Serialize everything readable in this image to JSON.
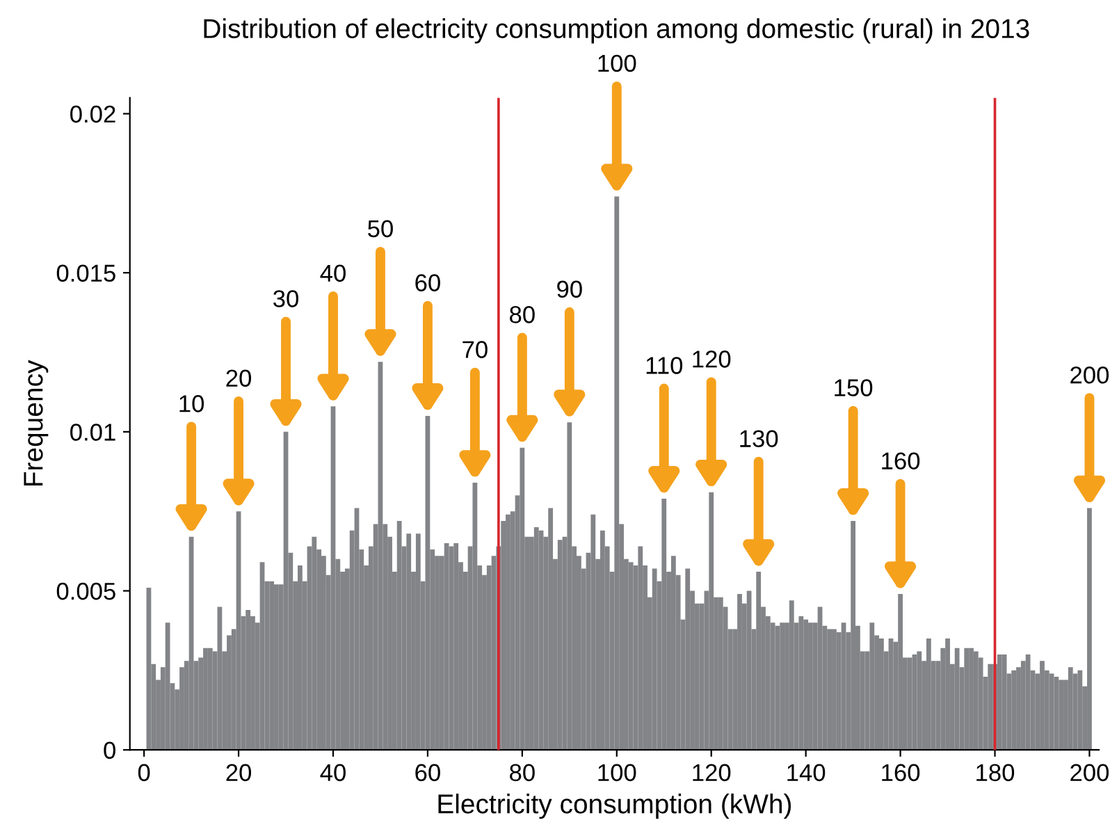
{
  "chart_data": {
    "type": "histogram",
    "title": "Distribution of electricity consumption among domestic (rural) in 2013",
    "xlabel": "Electricity consumption (kWh)",
    "ylabel": "Frequency",
    "color": "#838488",
    "bins": [
      0.5,
      1.5,
      2.5,
      3.5,
      4.5,
      5.5,
      6.5,
      7.5,
      8.5,
      9.5,
      10.5,
      11.5,
      12.5,
      13.5,
      14.5,
      15.5,
      16.5,
      17.5,
      18.5,
      19.5,
      20.5,
      21.5,
      22.5,
      23.5,
      24.5,
      25.5,
      26.5,
      27.5,
      28.5,
      29.5,
      30.5,
      31.5,
      32.5,
      33.5,
      34.5,
      35.5,
      36.5,
      37.5,
      38.5,
      39.5,
      40.5,
      41.5,
      42.5,
      43.5,
      44.5,
      45.5,
      46.5,
      47.5,
      48.5,
      49.5,
      50.5,
      51.5,
      52.5,
      53.5,
      54.5,
      55.5,
      56.5,
      57.5,
      58.5,
      59.5,
      60.5,
      61.5,
      62.5,
      63.5,
      64.5,
      65.5,
      66.5,
      67.5,
      68.5,
      69.5,
      70.5,
      71.5,
      72.5,
      73.5,
      74.5,
      75.5,
      76.5,
      77.5,
      78.5,
      79.5,
      80.5,
      81.5,
      82.5,
      83.5,
      84.5,
      85.5,
      86.5,
      87.5,
      88.5,
      89.5,
      90.5,
      91.5,
      92.5,
      93.5,
      94.5,
      95.5,
      96.5,
      97.5,
      98.5,
      99.5,
      100.5,
      101.5,
      102.5,
      103.5,
      104.5,
      105.5,
      106.5,
      107.5,
      108.5,
      109.5,
      110.5,
      111.5,
      112.5,
      113.5,
      114.5,
      115.5,
      116.5,
      117.5,
      118.5,
      119.5,
      120.5,
      121.5,
      122.5,
      123.5,
      124.5,
      125.5,
      126.5,
      127.5,
      128.5,
      129.5,
      130.5,
      131.5,
      132.5,
      133.5,
      134.5,
      135.5,
      136.5,
      137.5,
      138.5,
      139.5,
      140.5,
      141.5,
      142.5,
      143.5,
      144.5,
      145.5,
      146.5,
      147.5,
      148.5,
      149.5,
      150.5,
      151.5,
      152.5,
      153.5,
      154.5,
      155.5,
      156.5,
      157.5,
      158.5,
      159.5,
      160.5,
      161.5,
      162.5,
      163.5,
      164.5,
      165.5,
      166.5,
      167.5,
      168.5,
      169.5,
      170.5,
      171.5,
      172.5,
      173.5,
      174.5,
      175.5,
      176.5,
      177.5,
      178.5,
      179.5,
      180.5,
      181.5,
      182.5,
      183.5,
      184.5,
      185.5,
      186.5,
      187.5,
      188.5,
      189.5,
      190.5,
      191.5,
      192.5,
      193.5,
      194.5,
      195.5,
      196.5,
      197.5,
      198.5,
      199.5,
      200.5
    ],
    "values": [
      0.0051,
      0.0027,
      0.0022,
      0.0026,
      0.004,
      0.0021,
      0.0019,
      0.0026,
      0.0028,
      0.0067,
      0.0028,
      0.0029,
      0.0032,
      0.0032,
      0.0031,
      0.0045,
      0.0031,
      0.0036,
      0.0038,
      0.0075,
      0.0042,
      0.0044,
      0.0042,
      0.004,
      0.0059,
      0.0053,
      0.0053,
      0.0052,
      0.0052,
      0.01,
      0.0062,
      0.0053,
      0.0058,
      0.0053,
      0.0064,
      0.0067,
      0.0063,
      0.0061,
      0.0055,
      0.0108,
      0.006,
      0.0056,
      0.0057,
      0.0069,
      0.0076,
      0.0063,
      0.0058,
      0.0064,
      0.0071,
      0.0122,
      0.0071,
      0.0067,
      0.0056,
      0.0072,
      0.0064,
      0.0068,
      0.0056,
      0.0068,
      0.0053,
      0.0105,
      0.0063,
      0.0061,
      0.0061,
      0.0065,
      0.0064,
      0.0065,
      0.0059,
      0.0056,
      0.0064,
      0.0084,
      0.0058,
      0.0055,
      0.0058,
      0.0061,
      0.0064,
      0.0072,
      0.0074,
      0.0075,
      0.008,
      0.0095,
      0.0067,
      0.0067,
      0.007,
      0.0069,
      0.0067,
      0.0076,
      0.006,
      0.0066,
      0.0067,
      0.0103,
      0.0064,
      0.0061,
      0.0057,
      0.0062,
      0.0074,
      0.006,
      0.0069,
      0.0064,
      0.0056,
      0.0174,
      0.0071,
      0.006,
      0.0059,
      0.0058,
      0.0064,
      0.0058,
      0.0048,
      0.0057,
      0.0053,
      0.0079,
      0.0056,
      0.0061,
      0.0055,
      0.0041,
      0.0057,
      0.005,
      0.0046,
      0.0046,
      0.005,
      0.0081,
      0.0048,
      0.0048,
      0.0045,
      0.0038,
      0.0038,
      0.0049,
      0.0046,
      0.005,
      0.0038,
      0.0056,
      0.0045,
      0.0042,
      0.004,
      0.0039,
      0.004,
      0.004,
      0.0047,
      0.004,
      0.0042,
      0.0041,
      0.004,
      0.004,
      0.0045,
      0.0039,
      0.0038,
      0.0038,
      0.0037,
      0.004,
      0.0037,
      0.0072,
      0.0039,
      0.0031,
      0.0031,
      0.004,
      0.0036,
      0.0035,
      0.0031,
      0.0035,
      0.0034,
      0.0049,
      0.0029,
      0.0029,
      0.003,
      0.0031,
      0.0028,
      0.0035,
      0.0028,
      0.0028,
      0.0032,
      0.0035,
      0.0027,
      0.0032,
      0.0026,
      0.0032,
      0.0032,
      0.0031,
      0.0029,
      0.0023,
      0.0027,
      0.0027,
      0.003,
      0.003,
      0.0024,
      0.0025,
      0.0026,
      0.0028,
      0.003,
      0.0025,
      0.0024,
      0.0028,
      0.0025,
      0.0024,
      0.0023,
      0.0022,
      0.0022,
      0.0026,
      0.0024,
      0.0025,
      0.002,
      0.0076
    ],
    "xlim": [
      -3,
      202
    ],
    "xticks": [
      0,
      20,
      40,
      60,
      80,
      100,
      120,
      140,
      160,
      180,
      200
    ],
    "ylim": [
      0,
      0.0205
    ],
    "yticks": [
      0,
      0.005,
      0.01,
      0.015,
      0.02
    ],
    "ref_lines": [
      {
        "axis": "x",
        "value": 75,
        "color": "#d7262e"
      },
      {
        "axis": "x",
        "value": 180,
        "color": "#d7262e"
      }
    ],
    "annotations": [
      {
        "text": "10",
        "x": 10,
        "y": 0.0067
      },
      {
        "text": "20",
        "x": 20,
        "y": 0.0075
      },
      {
        "text": "30",
        "x": 30,
        "y": 0.01
      },
      {
        "text": "40",
        "x": 40,
        "y": 0.0108
      },
      {
        "text": "50",
        "x": 50,
        "y": 0.0122
      },
      {
        "text": "60",
        "x": 60,
        "y": 0.0105
      },
      {
        "text": "70",
        "x": 70,
        "y": 0.0084
      },
      {
        "text": "80",
        "x": 80,
        "y": 0.0095
      },
      {
        "text": "90",
        "x": 90,
        "y": 0.0103
      },
      {
        "text": "100",
        "x": 100,
        "y": 0.0174
      },
      {
        "text": "110",
        "x": 110,
        "y": 0.0079
      },
      {
        "text": "120",
        "x": 120,
        "y": 0.0081
      },
      {
        "text": "130",
        "x": 130,
        "y": 0.0056
      },
      {
        "text": "150",
        "x": 150,
        "y": 0.0072
      },
      {
        "text": "160",
        "x": 160,
        "y": 0.0049
      },
      {
        "text": "200",
        "x": 200,
        "y": 0.0076
      }
    ],
    "grid": false,
    "legend": false
  }
}
